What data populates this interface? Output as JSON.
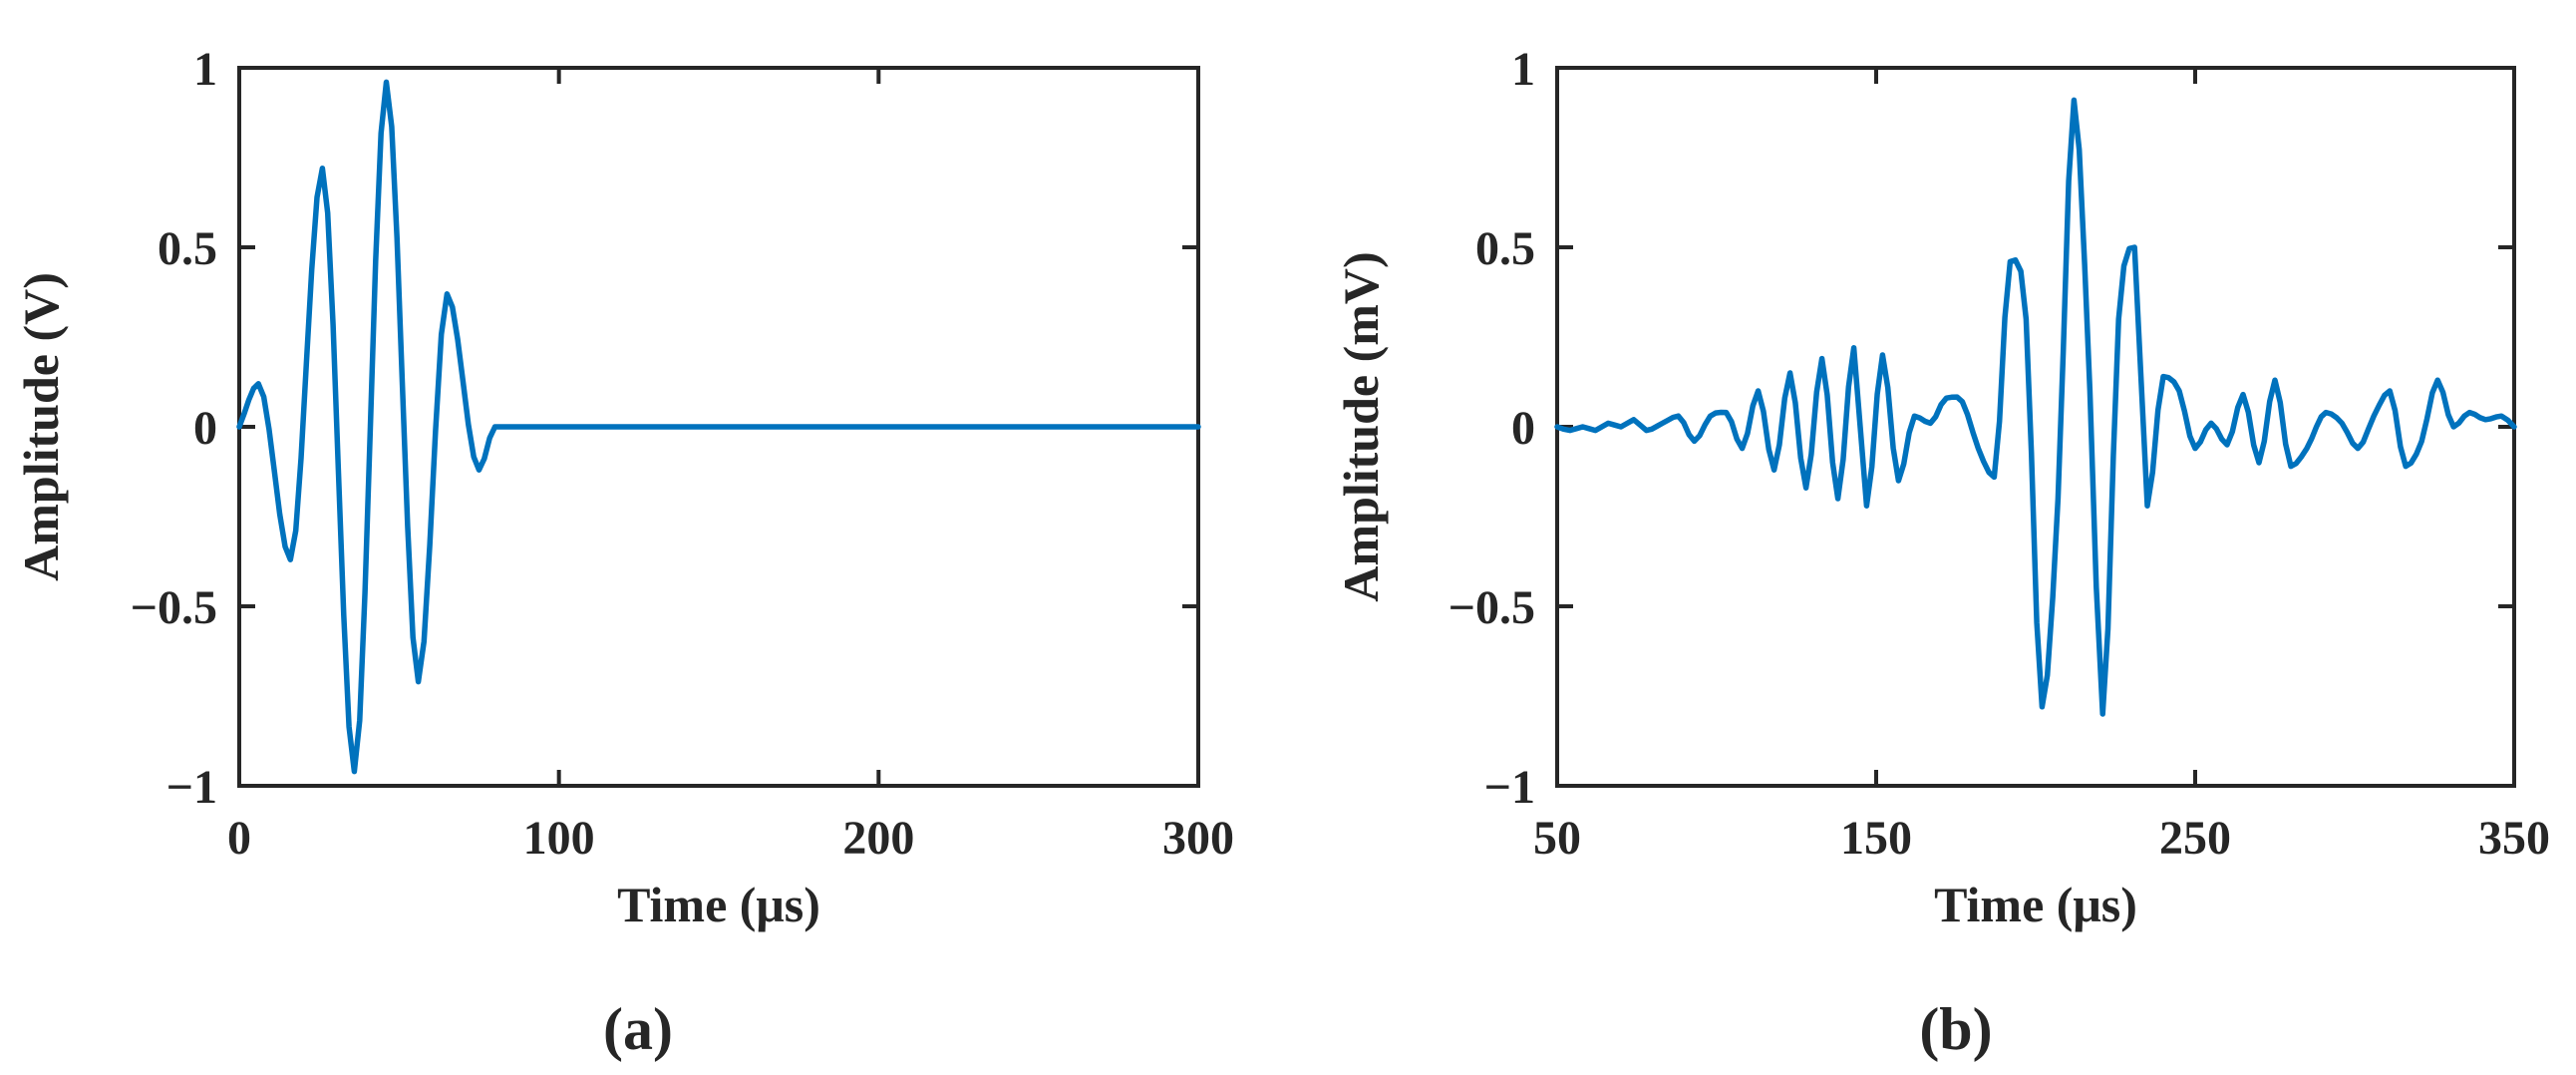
{
  "chart_data": [
    {
      "type": "line",
      "panel_label": "(a)",
      "xlabel": "Time (μs)",
      "ylabel": "Amplitude (V)",
      "xlim": [
        0,
        300
      ],
      "ylim": [
        -1,
        1
      ],
      "xticks": [
        0,
        100,
        200,
        300
      ],
      "xtick_labels": [
        "0",
        "100",
        "200",
        "300"
      ],
      "yticks": [
        -1,
        -0.5,
        0,
        0.5,
        1
      ],
      "ytick_labels": [
        "−1",
        "−0.5",
        "0",
        "0.5",
        "1"
      ],
      "grid": false,
      "color": "#0072BD",
      "series": [
        {
          "x": [
            0,
            6,
            16,
            26,
            36,
            46,
            56,
            65,
            75,
            80,
            300
          ],
          "y": [
            0,
            0.12,
            -0.37,
            0.72,
            -0.96,
            0.96,
            -0.71,
            0.37,
            -0.12,
            0,
            0
          ]
        }
      ]
    },
    {
      "type": "line",
      "panel_label": "(b)",
      "xlabel": "Time (μs)",
      "ylabel": "Amplitude (mV)",
      "xlim": [
        50,
        350
      ],
      "ylim": [
        -1,
        1
      ],
      "xticks": [
        50,
        150,
        250,
        350
      ],
      "xtick_labels": [
        "50",
        "150",
        "250",
        "350"
      ],
      "yticks": [
        -1,
        -0.5,
        0,
        0.5,
        1
      ],
      "ytick_labels": [
        "−1",
        "−0.5",
        "0",
        "0.5",
        "1"
      ],
      "grid": false,
      "color": "#0072BD",
      "series": [
        {
          "x": [
            50,
            54,
            58,
            62,
            66,
            70,
            74,
            78,
            83,
            88,
            93,
            98,
            103,
            108,
            113,
            118,
            123,
            128,
            133,
            138,
            143,
            147,
            152,
            157,
            162,
            167,
            172,
            177,
            182,
            187,
            192,
            197,
            202,
            207,
            212,
            217,
            221,
            226,
            231,
            235,
            240,
            245,
            250,
            255,
            260,
            265,
            270,
            275,
            280,
            285,
            291,
            296,
            301,
            306,
            311,
            316,
            321,
            326,
            331,
            336,
            341,
            346,
            350
          ],
          "y": [
            0,
            -0.01,
            0,
            -0.01,
            0.01,
            0,
            0.02,
            -0.01,
            0.01,
            0.03,
            -0.04,
            0.03,
            0.04,
            -0.06,
            0.1,
            -0.12,
            0.15,
            -0.17,
            0.19,
            -0.2,
            0.22,
            -0.22,
            0.2,
            -0.15,
            0.03,
            0.01,
            0.08,
            0.07,
            -0.06,
            -0.14,
            0.46,
            0.3,
            -0.78,
            -0.2,
            0.91,
            0.1,
            -0.8,
            0.3,
            0.5,
            -0.22,
            0.14,
            0.1,
            -0.06,
            0.01,
            -0.05,
            0.09,
            -0.1,
            0.13,
            -0.11,
            -0.06,
            0.04,
            0.01,
            -0.06,
            0.03,
            0.1,
            -0.11,
            -0.04,
            0.13,
            0,
            0.04,
            0.02,
            0.03,
            0
          ],
          "_note": "sampled extrema"
        }
      ]
    }
  ]
}
